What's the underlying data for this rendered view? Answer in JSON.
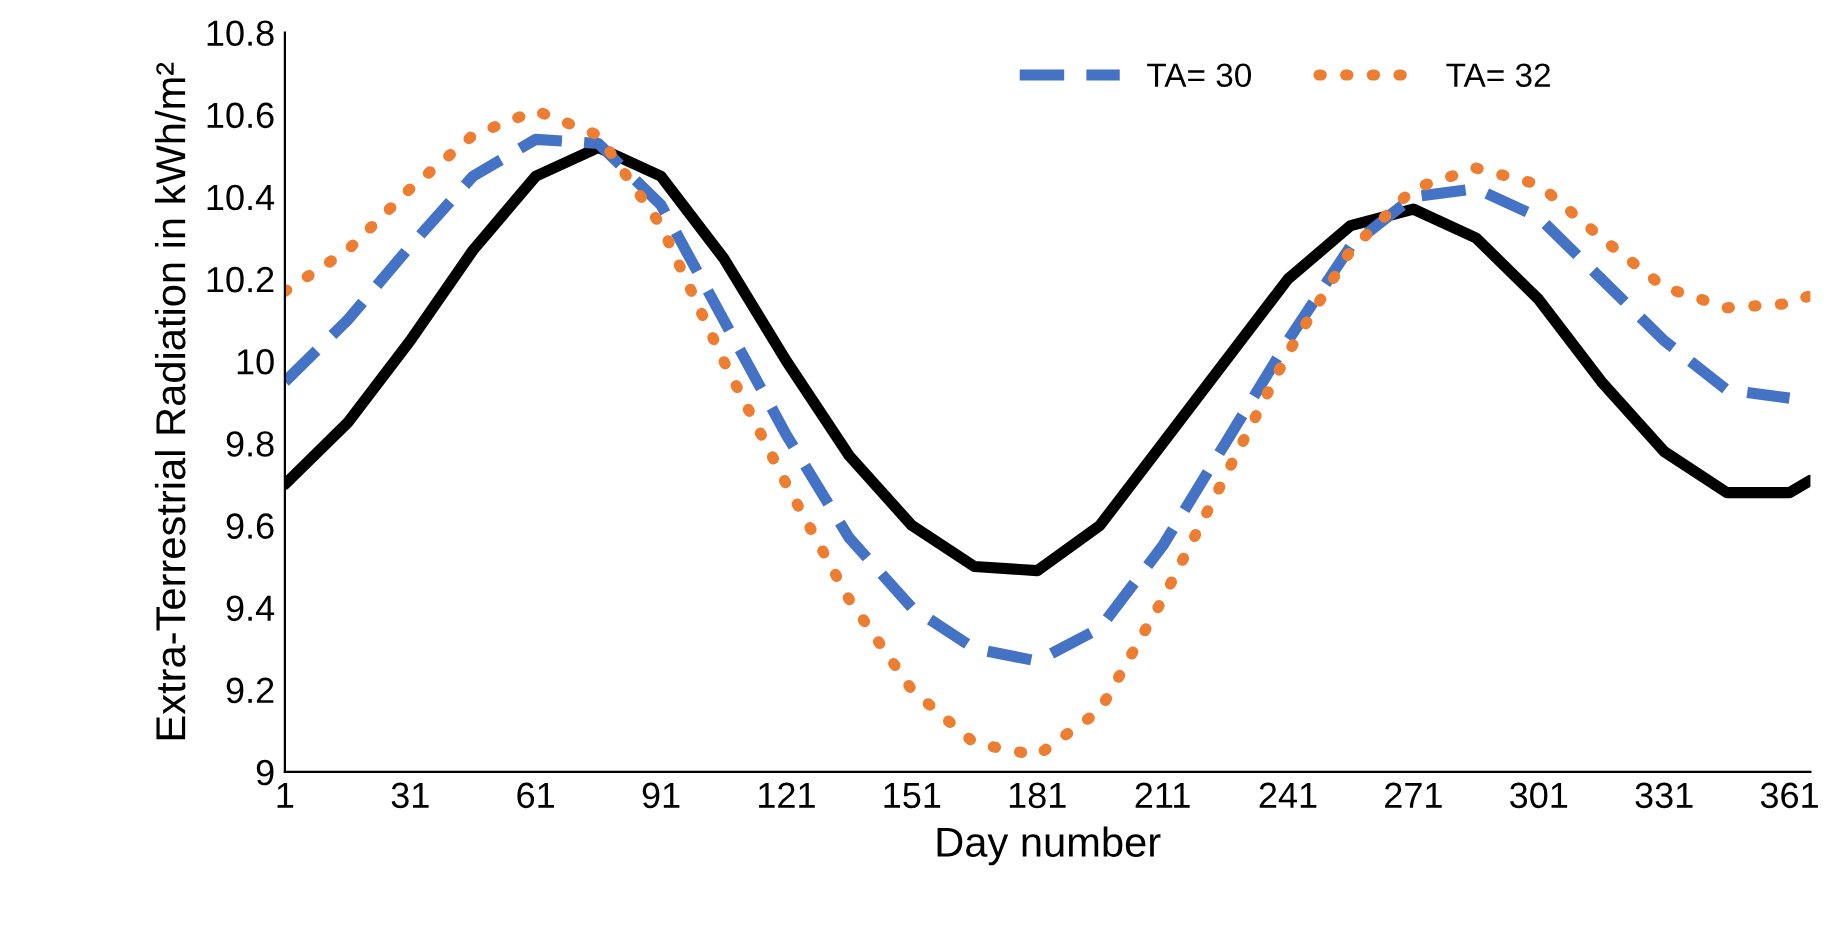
{
  "chart_data": {
    "type": "line",
    "xlabel": "Day number",
    "ylabel": "Extra-Terrestrial Radiation in kWh/m²",
    "xlim": [
      1,
      366
    ],
    "xticks": [
      1,
      31,
      61,
      91,
      121,
      151,
      181,
      211,
      241,
      271,
      301,
      331,
      361
    ],
    "ylim": [
      9,
      10.8
    ],
    "yticks": [
      9,
      9.2,
      9.4,
      9.6,
      9.8,
      10,
      10.2,
      10.4,
      10.6,
      10.8
    ],
    "grid": false,
    "legend": "top right",
    "marker": "none",
    "series": [
      {
        "color": "#000000",
        "line_style": "solid",
        "x": [
          1,
          16,
          31,
          46,
          61,
          76,
          91,
          106,
          121,
          136,
          151,
          166,
          181,
          196,
          211,
          226,
          241,
          256,
          271,
          286,
          301,
          316,
          331,
          346,
          361,
          366
        ],
        "values": [
          9.7,
          9.85,
          10.05,
          10.27,
          10.45,
          10.52,
          10.45,
          10.25,
          10.0,
          9.77,
          9.6,
          9.5,
          9.49,
          9.6,
          9.8,
          10.0,
          10.2,
          10.33,
          10.37,
          10.3,
          10.15,
          9.95,
          9.78,
          9.68,
          9.68,
          9.71
        ]
      },
      {
        "name": "TA= 30",
        "color": "#4472c4",
        "line_style": "dashed",
        "x": [
          1,
          16,
          31,
          46,
          61,
          76,
          91,
          106,
          121,
          136,
          151,
          166,
          181,
          196,
          211,
          226,
          241,
          256,
          271,
          286,
          301,
          316,
          331,
          346,
          361
        ],
        "values": [
          9.95,
          10.1,
          10.28,
          10.45,
          10.54,
          10.53,
          10.38,
          10.1,
          9.82,
          9.57,
          9.4,
          9.3,
          9.27,
          9.35,
          9.55,
          9.8,
          10.05,
          10.28,
          10.4,
          10.42,
          10.35,
          10.2,
          10.05,
          9.93,
          9.91
        ]
      },
      {
        "name": "TA= 32",
        "color": "#ed7d31",
        "line_style": "dotted",
        "x": [
          1,
          16,
          31,
          46,
          61,
          76,
          91,
          106,
          121,
          136,
          151,
          166,
          181,
          196,
          211,
          226,
          241,
          256,
          271,
          286,
          301,
          316,
          331,
          346,
          361,
          366
        ],
        "values": [
          10.17,
          10.27,
          10.42,
          10.55,
          10.61,
          10.55,
          10.33,
          10.0,
          9.7,
          9.42,
          9.2,
          9.07,
          9.04,
          9.15,
          9.42,
          9.72,
          10.02,
          10.27,
          10.42,
          10.47,
          10.43,
          10.3,
          10.18,
          10.13,
          10.14,
          10.16
        ]
      }
    ]
  }
}
